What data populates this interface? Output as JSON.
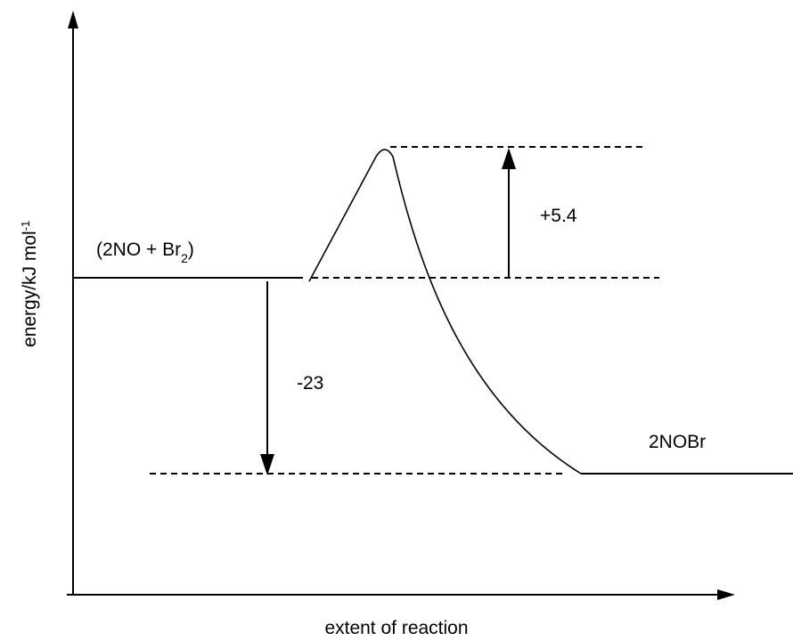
{
  "axes": {
    "y_label_main": "energy/kJ mol",
    "y_label_sup": "-1",
    "x_label": "extent of reaction"
  },
  "species": {
    "reactants_open": "(2NO + Br",
    "reactants_sub": "2",
    "reactants_close": ")",
    "products": "2NOBr"
  },
  "energies": {
    "activation": "+5.4",
    "reaction": "-23"
  }
}
